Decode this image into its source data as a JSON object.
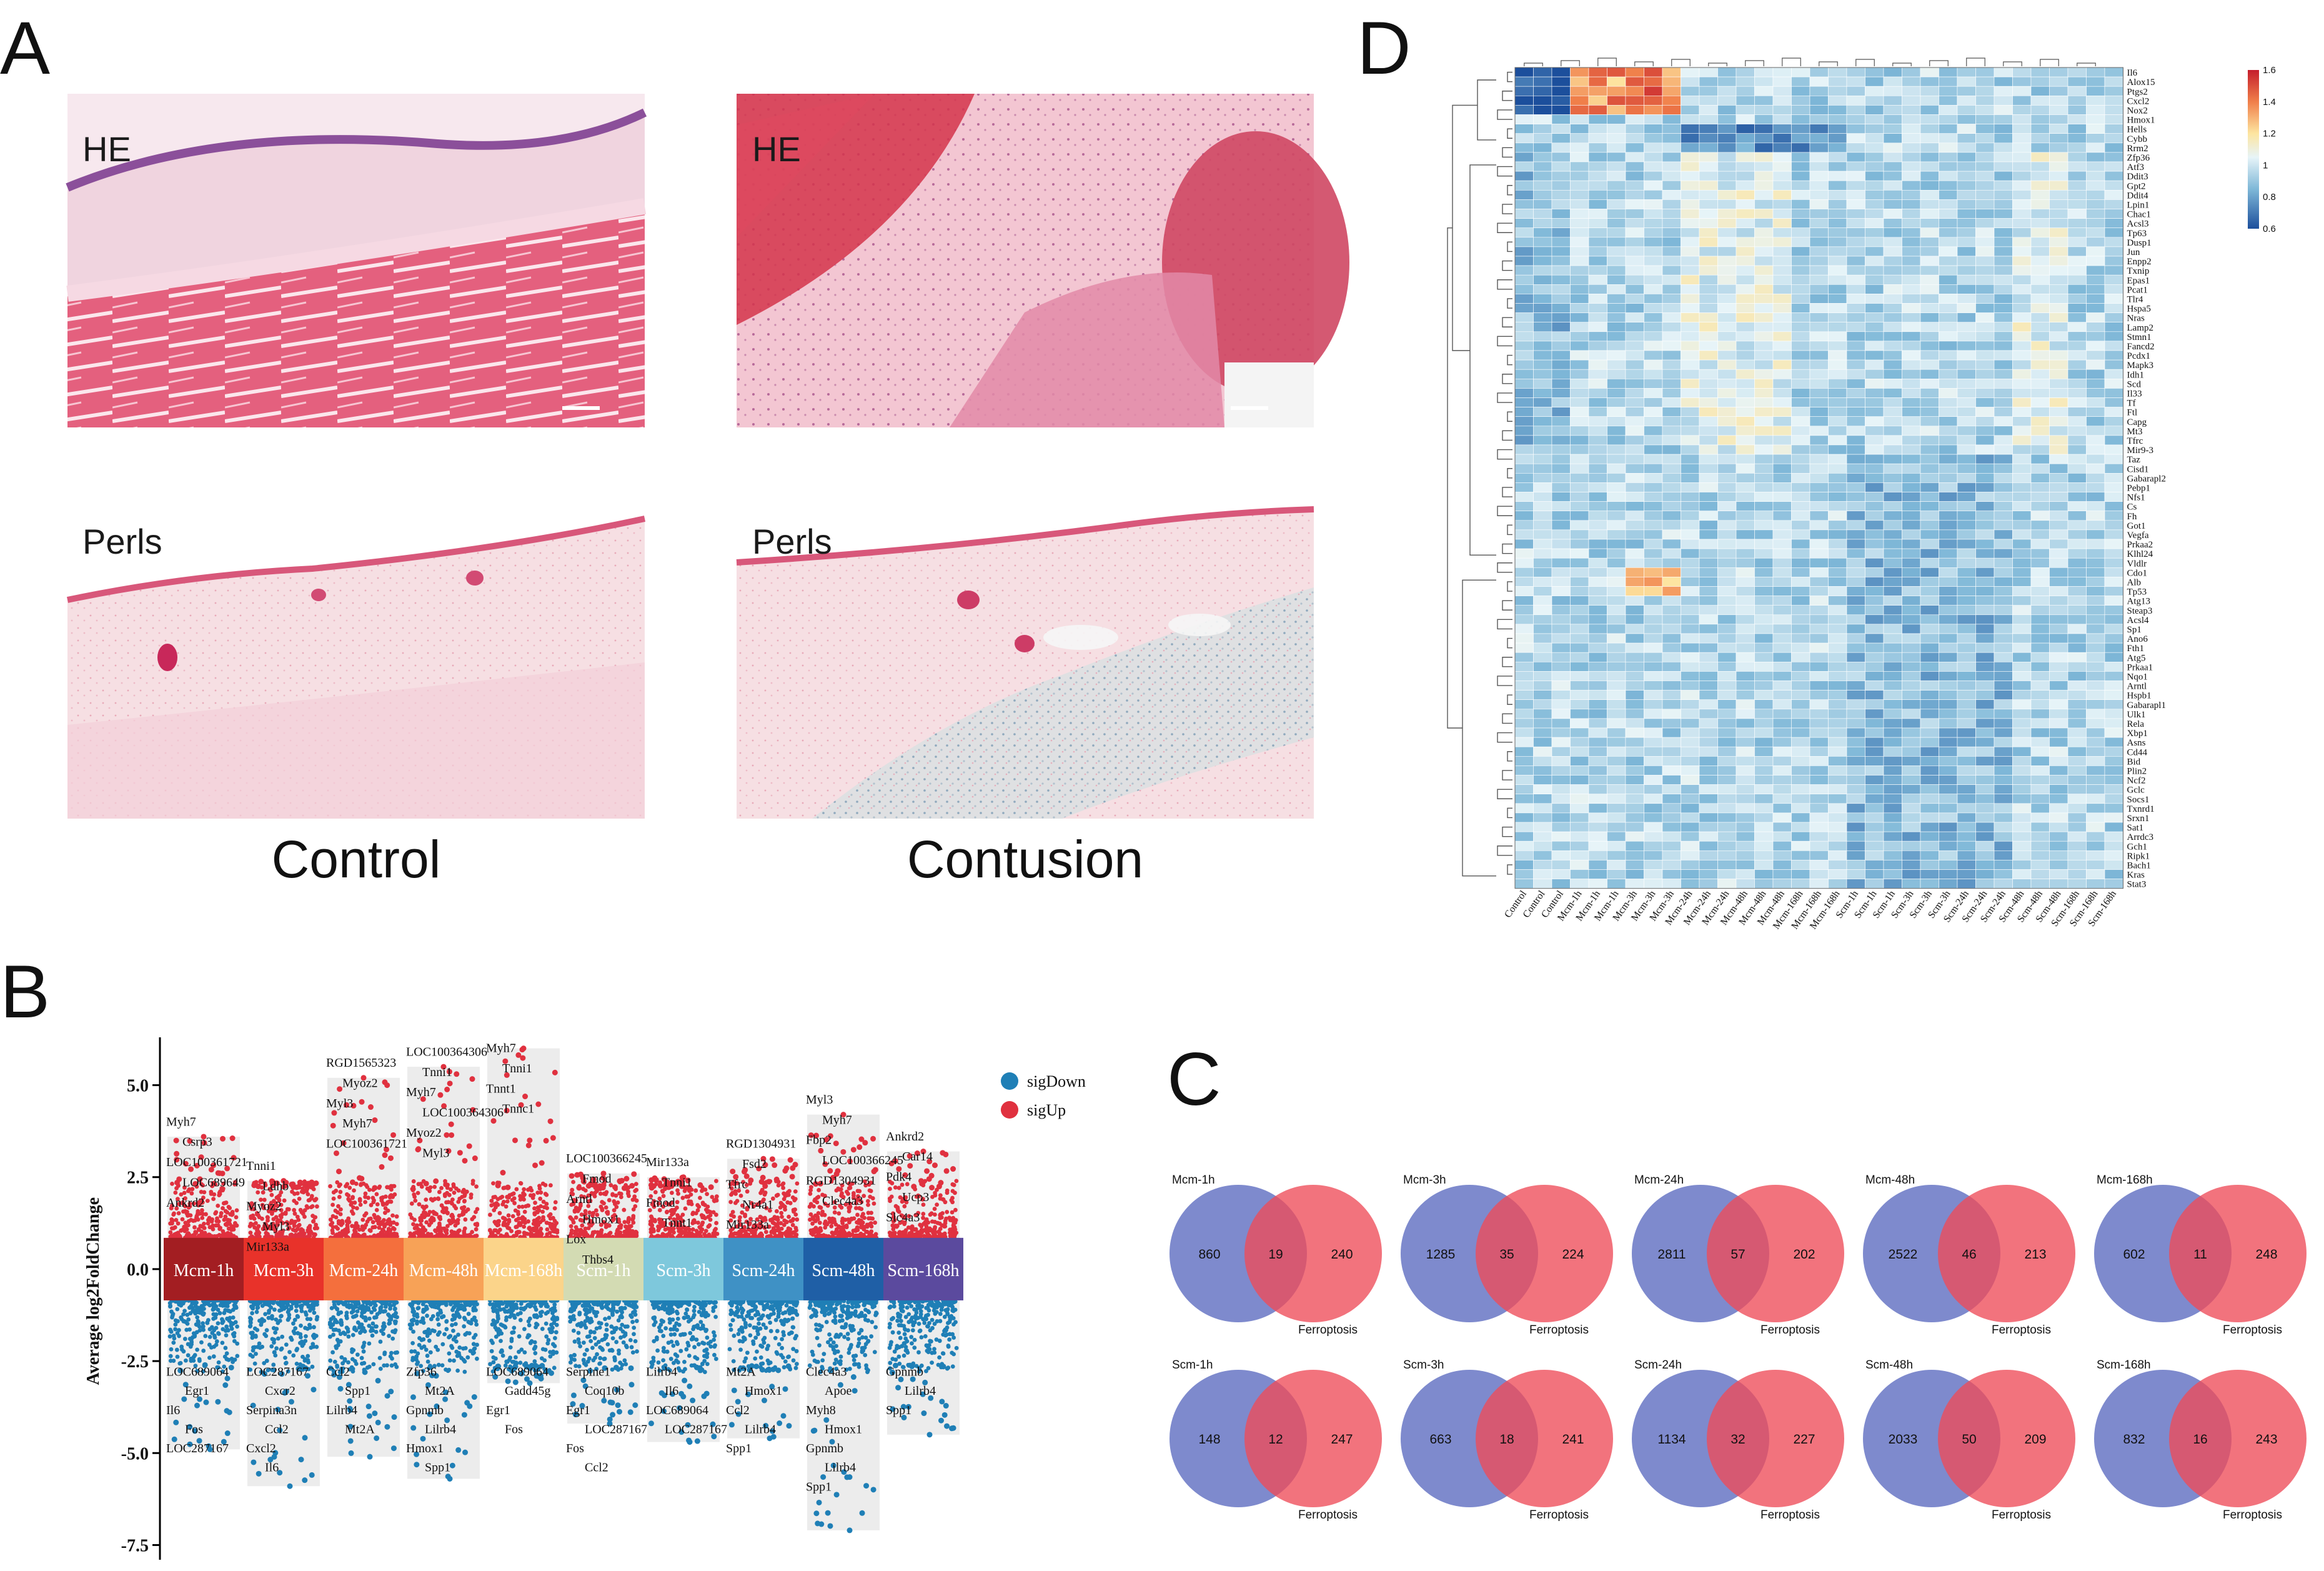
{
  "panels": {
    "A": {
      "label": "A",
      "images": [
        {
          "stain": "HE",
          "group": "Control"
        },
        {
          "stain": "HE",
          "group": "Contusion"
        },
        {
          "stain": "Perls",
          "group": "Control"
        },
        {
          "stain": "Perls",
          "group": "Contusion"
        }
      ],
      "captions": [
        "Control",
        "Contusion"
      ]
    },
    "B": {
      "label": "B"
    },
    "C": {
      "label": "C"
    },
    "D": {
      "label": "D"
    }
  },
  "chart_data": [
    {
      "id": "volcano",
      "type": "scatter",
      "ylabel": "Average log2FoldChange",
      "ylim": [
        -7.9,
        6.3
      ],
      "yticks": [
        5.0,
        2.5,
        0.0,
        -2.5,
        -5.0,
        -7.5
      ],
      "ytick_labels": [
        "5.0",
        "2.5",
        "0.0",
        "-2.5",
        "-5.0",
        "-7.5"
      ],
      "legend": [
        {
          "name": "sigDown",
          "color": "#1f7fb6"
        },
        {
          "name": "sigUp",
          "color": "#e0313f"
        }
      ],
      "groups": [
        {
          "name": "Mcm-1h",
          "color": "#a31e22",
          "up_max": 3.6,
          "down_min": -4.9
        },
        {
          "name": "Mcm-3h",
          "color": "#e8322a",
          "up_max": 2.4,
          "down_min": -5.9
        },
        {
          "name": "Mcm-24h",
          "color": "#f46f3d",
          "up_max": 5.2,
          "down_min": -5.1
        },
        {
          "name": "Mcm-48h",
          "color": "#f7a257",
          "up_max": 5.5,
          "down_min": -5.7
        },
        {
          "name": "Mcm-168h",
          "color": "#fbd48a",
          "up_max": 6.0,
          "down_min": -3.1
        },
        {
          "name": "Scm-1h",
          "color": "#d3dbb3",
          "up_max": 2.6,
          "down_min": -4.2
        },
        {
          "name": "Scm-3h",
          "color": "#7ec8dc",
          "up_max": 2.5,
          "down_min": -4.7
        },
        {
          "name": "Scm-24h",
          "color": "#3f91c5",
          "up_max": 3.0,
          "down_min": -4.6
        },
        {
          "name": "Scm-48h",
          "color": "#1f5fa6",
          "up_max": 4.2,
          "down_min": -7.1
        },
        {
          "name": "Scm-168h",
          "color": "#5b4a9e",
          "up_max": 3.2,
          "down_min": -4.5
        }
      ],
      "gene_labels_up": [
        [
          "Myh7",
          "Csrp3",
          "LOC100361721",
          "LOC689649",
          "Ankrd2"
        ],
        [
          "Tnni1",
          "Ldhb",
          "Myoz2",
          "Myl3",
          "Mir133a"
        ],
        [
          "RGD1565323",
          "Myoz2",
          "Myl3",
          "Myh7",
          "LOC100361721"
        ],
        [
          "LOC100364306",
          "Tnni1",
          "Myh7",
          "LOC100364306",
          "Myoz2",
          "Myl3"
        ],
        [
          "Myh7",
          "Tnni1",
          "Tnnt1",
          "Tnnc1"
        ],
        [
          "LOC100366245",
          "Fmod",
          "Arntl",
          "Hmox1",
          "Lox",
          "Thbs4"
        ],
        [
          "Mir133a",
          "Tnni1",
          "Fmod",
          "Tnnt1"
        ],
        [
          "RGD1304931",
          "Fsd2",
          "Tfrc",
          "Nr4a1",
          "Mir133a"
        ],
        [
          "Myl3",
          "Myh7",
          "Fbp2",
          "LOC100366245",
          "RGD1304931",
          "Clec4a3"
        ],
        [
          "Ankrd2",
          "Car14",
          "Pdk4",
          "Ucp3",
          "Slc4a3"
        ]
      ],
      "gene_labels_down": [
        [
          "LOC689064",
          "Egr1",
          "Il6",
          "Fos",
          "LOC287167"
        ],
        [
          "LOC287167",
          "Cxcr2",
          "Serpina3n",
          "Ccl2",
          "Cxcl2",
          "Il6"
        ],
        [
          "Ccl2",
          "Spp1",
          "Lilrb4",
          "Mt2A"
        ],
        [
          "Zfp36",
          "Mt2A",
          "Gpnmb",
          "Lilrb4",
          "Hmox1",
          "Spp1"
        ],
        [
          "LOC689064",
          "Gadd45g",
          "Egr1",
          "Fos"
        ],
        [
          "Serpine1",
          "Coq10b",
          "Egr1",
          "LOC287167",
          "Fos",
          "Ccl2"
        ],
        [
          "Lilrb4",
          "Il6",
          "LOC689064",
          "LOC287167"
        ],
        [
          "Mt2A",
          "Hmox1",
          "Ccl2",
          "Lilrb4",
          "Spp1"
        ],
        [
          "Clec4a3",
          "Apoe",
          "Myh8",
          "Hmox1",
          "Gpnmb",
          "Lilrb4",
          "Spp1"
        ],
        [
          "Gpnmb",
          "Lilrb4",
          "Spp1"
        ]
      ]
    },
    {
      "id": "venn",
      "type": "venn",
      "set_b_label": "Ferroptosis",
      "pairs": [
        {
          "title": "Mcm-1h",
          "only_a": 860,
          "both": 19,
          "only_b": 240
        },
        {
          "title": "Mcm-3h",
          "only_a": 1285,
          "both": 35,
          "only_b": 224
        },
        {
          "title": "Mcm-24h",
          "only_a": 2811,
          "both": 57,
          "only_b": 202
        },
        {
          "title": "Mcm-48h",
          "only_a": 2522,
          "both": 46,
          "only_b": 213
        },
        {
          "title": "Mcm-168h",
          "only_a": 602,
          "both": 11,
          "only_b": 248
        },
        {
          "title": "Scm-1h",
          "only_a": 148,
          "both": 12,
          "only_b": 247
        },
        {
          "title": "Scm-3h",
          "only_a": 663,
          "both": 18,
          "only_b": 241
        },
        {
          "title": "Scm-24h",
          "only_a": 1134,
          "both": 32,
          "only_b": 227
        },
        {
          "title": "Scm-48h",
          "only_a": 2033,
          "both": 50,
          "only_b": 209
        },
        {
          "title": "Scm-168h",
          "only_a": 832,
          "both": 16,
          "only_b": 243
        }
      ]
    },
    {
      "id": "heatmap",
      "type": "heatmap",
      "scale": {
        "min": 0.6,
        "max": 1.6,
        "ticks": [
          1.6,
          1.4,
          1.2,
          1.0,
          0.8,
          0.6
        ],
        "tick_labels": [
          "1.6",
          "1.4",
          "1.2",
          "1",
          "0.8",
          "0.6"
        ]
      },
      "columns": [
        "Control",
        "Control",
        "Control",
        "Mcm-1h",
        "Mcm-1h",
        "Mcm-1h",
        "Mcm-3h",
        "Mcm-3h",
        "Mcm-3h",
        "Mcm-24h",
        "Mcm-24h",
        "Mcm-24h",
        "Mcm-48h",
        "Mcm-48h",
        "Mcm-48h",
        "Mcm-168h",
        "Mcm-168h",
        "Mcm-168h",
        "Scm-1h",
        "Scm-1h",
        "Scm-1h",
        "Scm-3h",
        "Scm-3h",
        "Scm-3h",
        "Scm-24h",
        "Scm-24h",
        "Scm-24h",
        "Scm-48h",
        "Scm-48h",
        "Scm-48h",
        "Scm-168h",
        "Scm-168h",
        "Scm-168h"
      ],
      "rows": [
        "Il6",
        "Alox15",
        "Ptgs2",
        "Cxcl2",
        "Nox2",
        "Hmox1",
        "Hells",
        "Cybb",
        "Rrm2",
        "Zfp36",
        "Atf3",
        "Ddit3",
        "Gpt2",
        "Ddit4",
        "Lpin1",
        "Chac1",
        "Acsl3",
        "Tp63",
        "Dusp1",
        "Jun",
        "Enpp2",
        "Txnip",
        "Epas1",
        "Pcat1",
        "Tlr4",
        "Hspa5",
        "Nras",
        "Lamp2",
        "Stmn1",
        "Fancd2",
        "Pcdx1",
        "Mapk3",
        "Idh1",
        "Scd",
        "Il33",
        "Tf",
        "Ftl",
        "Capg",
        "Mt3",
        "Tfrc",
        "Mir9-3",
        "Taz",
        "Cisd1",
        "Gabarapl2",
        "Pebp1",
        "Nfs1",
        "Cs",
        "Fh",
        "Got1",
        "Vegfa",
        "Prkaa2",
        "Klhl24",
        "Vldlr",
        "Cdo1",
        "Alb",
        "Tp53",
        "Atg13",
        "Steap3",
        "Acsl4",
        "Sp1",
        "Ano6",
        "Fth1",
        "Atg5",
        "Prkaa1",
        "Nqo1",
        "Arntl",
        "Hspb1",
        "Gabarapl1",
        "Ulk1",
        "Rela",
        "Xbp1",
        "Asns",
        "Cd44",
        "Bid",
        "Plin2",
        "Ncf2",
        "Gclc",
        "Socs1",
        "Txnrd1",
        "Srxn1",
        "Sat1",
        "Arrdc3",
        "Gch1",
        "Ripk1",
        "Bach1",
        "Kras",
        "Stat3"
      ]
    }
  ]
}
